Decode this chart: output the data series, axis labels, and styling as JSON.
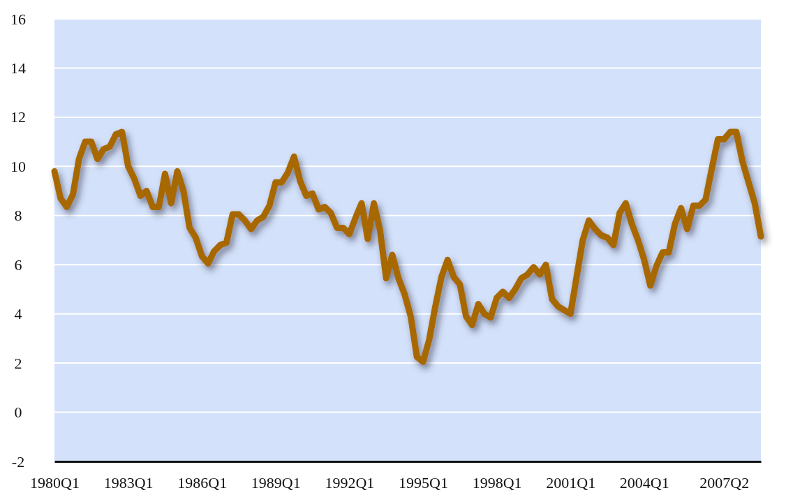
{
  "chart_data": {
    "type": "line",
    "categories": [
      "1980Q1",
      null,
      null,
      null,
      null,
      null,
      null,
      null,
      null,
      null,
      null,
      null,
      "1983Q1",
      null,
      null,
      null,
      null,
      null,
      null,
      null,
      null,
      null,
      null,
      null,
      "1986Q1",
      null,
      null,
      null,
      null,
      null,
      null,
      null,
      null,
      null,
      null,
      null,
      "1989Q1",
      null,
      null,
      null,
      null,
      null,
      null,
      null,
      null,
      null,
      null,
      null,
      "1992Q1",
      null,
      null,
      null,
      null,
      null,
      null,
      null,
      null,
      null,
      null,
      null,
      "1995Q1",
      null,
      null,
      null,
      null,
      null,
      null,
      null,
      null,
      null,
      null,
      null,
      "1998Q1",
      null,
      null,
      null,
      null,
      null,
      null,
      null,
      null,
      null,
      null,
      null,
      "2001Q1",
      null,
      null,
      null,
      null,
      null,
      null,
      null,
      null,
      null,
      null,
      null,
      "2004Q1",
      null,
      null,
      null,
      null,
      null,
      null,
      null,
      null,
      null,
      null,
      null,
      null,
      "2007Q2",
      null,
      null,
      null,
      null,
      null,
      null
    ],
    "series": [
      {
        "color": "#a86800",
        "values": [
          9.8,
          8.7,
          8.35,
          8.85,
          10.3,
          11.0,
          11.0,
          10.3,
          10.7,
          10.8,
          11.3,
          11.4,
          10.0,
          9.5,
          8.8,
          9.0,
          8.35,
          8.35,
          9.7,
          8.5,
          9.8,
          9.0,
          7.5,
          7.1,
          6.35,
          6.05,
          6.55,
          6.8,
          6.9,
          8.05,
          8.05,
          7.8,
          7.45,
          7.8,
          7.95,
          8.4,
          9.35,
          9.35,
          9.75,
          10.4,
          9.4,
          8.8,
          8.9,
          8.25,
          8.35,
          8.1,
          7.5,
          7.5,
          7.25,
          7.9,
          8.5,
          7.05,
          8.5,
          7.4,
          5.45,
          6.4,
          5.45,
          4.8,
          3.9,
          2.25,
          2.05,
          2.95,
          4.3,
          5.5,
          6.2,
          5.5,
          5.2,
          3.9,
          3.55,
          4.4,
          4.0,
          3.85,
          4.65,
          4.9,
          4.65,
          5.0,
          5.45,
          5.6,
          5.9,
          5.6,
          6.0,
          4.6,
          4.3,
          4.15,
          4.0,
          5.5,
          7.0,
          7.8,
          7.45,
          7.2,
          7.1,
          6.8,
          8.1,
          8.5,
          7.65,
          7.0,
          6.2,
          5.15,
          5.95,
          6.5,
          6.5,
          7.65,
          8.3,
          7.45,
          8.4,
          8.4,
          8.65,
          9.9,
          11.1,
          11.1,
          11.4,
          11.4,
          10.2,
          9.35,
          8.5,
          7.15
        ]
      }
    ],
    "ylim": [
      -2,
      16
    ],
    "yticks": [
      -2,
      0,
      2,
      4,
      6,
      8,
      10,
      12,
      14,
      16
    ],
    "grid": "y",
    "marker": "none",
    "line_style": "solid"
  }
}
